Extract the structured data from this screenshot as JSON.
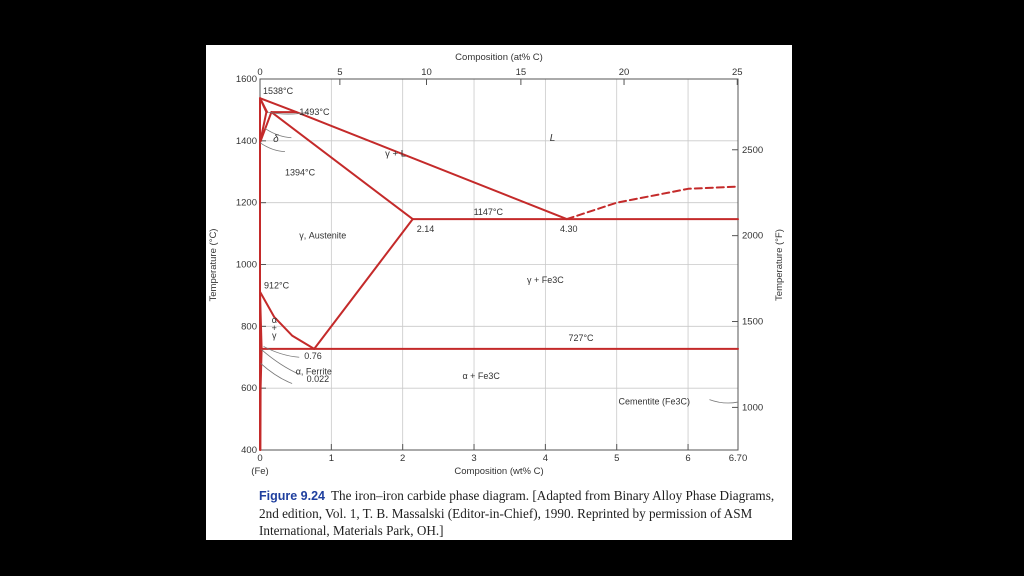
{
  "caption": {
    "label": "Figure 9.24",
    "text": "The iron–iron carbide phase diagram. [Adapted from Binary Alloy Phase Diagrams, 2nd edition, Vol. 1, T. B. Massalski (Editor-in-Chief), 1990. Reprinted by permission of ASM International, Materials Park, OH.]"
  },
  "chart_data": {
    "type": "line",
    "title": "",
    "xlabel": "Composition (wt% C)",
    "x2label": "Composition (at% C)",
    "ylabel": "Temperature (°C)",
    "y2label": "Temperature (°F)",
    "xlim": [
      0,
      6.7
    ],
    "ylim": [
      400,
      1600
    ],
    "x_ticks": [
      0,
      1,
      2,
      3,
      4,
      5,
      6
    ],
    "x_tick_labels": [
      "0",
      "1",
      "2",
      "3",
      "4",
      "5",
      "6"
    ],
    "x_end_label": "6.70",
    "x_origin_note": "(Fe)",
    "y_ticks": [
      400,
      600,
      800,
      1000,
      1200,
      1400,
      1600
    ],
    "x2_ticks": [
      0,
      5,
      10,
      15,
      20,
      25
    ],
    "y2_ticks": [
      1000,
      1500,
      2000,
      2500
    ],
    "grid": true,
    "line_color": "#c42a2a",
    "series": [
      {
        "style": "solid",
        "points": [
          [
            0,
            1538
          ],
          [
            0.1,
            1493
          ]
        ]
      },
      {
        "style": "solid",
        "points": [
          [
            0,
            1538
          ],
          [
            0.51,
            1493
          ],
          [
            4.3,
            1147
          ]
        ]
      },
      {
        "style": "solid",
        "points": [
          [
            0,
            1538
          ],
          [
            0.09,
            1493
          ]
        ]
      },
      {
        "style": "solid",
        "points": [
          [
            0.09,
            1493
          ],
          [
            0,
            1394
          ]
        ]
      },
      {
        "style": "solid",
        "points": [
          [
            0.16,
            1493
          ],
          [
            0.51,
            1493
          ]
        ]
      },
      {
        "style": "solid",
        "points": [
          [
            0.16,
            1493
          ],
          [
            0,
            1394
          ]
        ]
      },
      {
        "style": "solid",
        "points": [
          [
            0.16,
            1493
          ],
          [
            2.14,
            1147
          ]
        ]
      },
      {
        "style": "solid",
        "points": [
          [
            2.14,
            1147
          ],
          [
            6.7,
            1147
          ]
        ]
      },
      {
        "style": "solid",
        "points": [
          [
            2.14,
            1147
          ],
          [
            0.76,
            727
          ]
        ]
      },
      {
        "style": "solid",
        "points": [
          [
            0,
            912
          ],
          [
            0.2,
            830
          ],
          [
            0.45,
            770
          ],
          [
            0.76,
            727
          ]
        ]
      },
      {
        "style": "solid",
        "points": [
          [
            0.022,
            727
          ],
          [
            6.7,
            727
          ]
        ]
      },
      {
        "style": "solid",
        "points": [
          [
            0,
            912
          ],
          [
            0.022,
            727
          ]
        ]
      },
      {
        "style": "solid",
        "points": [
          [
            0.022,
            727
          ],
          [
            0.008,
            600
          ],
          [
            0.005,
            400
          ]
        ]
      },
      {
        "style": "solid",
        "points": [
          [
            0,
            400
          ],
          [
            0,
            1538
          ]
        ]
      },
      {
        "style": "dashed",
        "points": [
          [
            4.3,
            1147
          ],
          [
            5.0,
            1200
          ],
          [
            6.0,
            1245
          ],
          [
            6.7,
            1252
          ]
        ]
      }
    ],
    "annotations": [
      {
        "text": "1538°C",
        "x": 0.0,
        "y": 1538
      },
      {
        "text": "1493°C",
        "x": 0.51,
        "y": 1493
      },
      {
        "text": "δ",
        "x": 0.1,
        "y": 1400
      },
      {
        "text": "1394°C",
        "x": 0,
        "y": 1394
      },
      {
        "text": "L",
        "x": 4.1,
        "y": 1400
      },
      {
        "text": "γ + L",
        "x": 1.9,
        "y": 1350
      },
      {
        "text": "1147°C",
        "x": 3.2,
        "y": 1147
      },
      {
        "text": "2.14",
        "x": 2.14,
        "y": 1147
      },
      {
        "text": "4.30",
        "x": 4.3,
        "y": 1147
      },
      {
        "text": "γ, Austenite",
        "x": 0.9,
        "y": 1100
      },
      {
        "text": "912°C",
        "x": 0,
        "y": 912
      },
      {
        "text": "γ + Fe3C",
        "x": 4.0,
        "y": 940
      },
      {
        "text": "α",
        "x": 0.2,
        "y": 810
      },
      {
        "text": "+",
        "x": 0.2,
        "y": 785
      },
      {
        "text": "γ",
        "x": 0.2,
        "y": 760
      },
      {
        "text": "727°C",
        "x": 4.5,
        "y": 727
      },
      {
        "text": "0.76",
        "x": 0.76,
        "y": 727
      },
      {
        "text": "0.022",
        "x": 0.022,
        "y": 727
      },
      {
        "text": "α, Ferrite",
        "x": 0.01,
        "y": 660
      },
      {
        "text": "α + Fe3C",
        "x": 3.1,
        "y": 630
      },
      {
        "text": "Cementite (Fe3C)",
        "x": 6.7,
        "y": 560
      }
    ]
  }
}
